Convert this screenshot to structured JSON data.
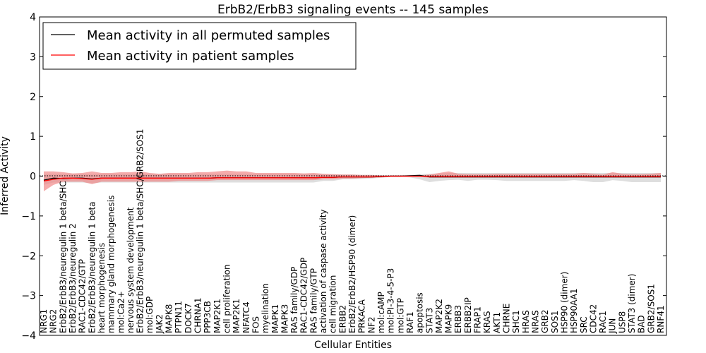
{
  "chart_data": {
    "type": "line",
    "title": "ErbB2/ErbB3 signaling events -- 145 samples",
    "xlabel": "Cellular Entities",
    "ylabel": "Inferred Activity",
    "ylim": [
      -4,
      4
    ],
    "yticks": [
      "4",
      "3",
      "2",
      "1",
      "0",
      "−1",
      "−2",
      "−3",
      "−4"
    ],
    "grid": false,
    "legend_position": "top-left",
    "categories": [
      "NRG1",
      "NRG2",
      "ErbB2/ErbB3/neuregulin 1 beta/SHC",
      "ErbB2/ErbB3/neuregulin 2",
      "RAC1-CDC42/GTP",
      "ErbB2/ErbB3/neuregulin 1 beta",
      "heart morphogenesis",
      "mammary gland morphogenesis",
      "mol:Ca2+",
      "nervous system development",
      "ErbB2/ErbB3/neuregulin 1 beta/SHC/GRB2/SOS1",
      "mol:GDP",
      "JAK2",
      "MAPK8",
      "PTPN11",
      "DOCK7",
      "CHRNA1",
      "PPP3CB",
      "MAP2K1",
      "cell proliferation",
      "MAP2K1",
      "NFATC4",
      "FOS",
      "myelination",
      "MAPK1",
      "MAPK3",
      "RAS family/GDP",
      "RAC1-CDC42/GDP",
      "RAS family/GTP",
      "activation of caspase activity",
      "cell migration",
      "ERBB2",
      "ErbB2/ErbB2/HSP90 (dimer)",
      "PRKACA",
      "NF2",
      "mol:cAMP",
      "mol:PI-3-4-5-P3",
      "mol:GTP",
      "RAF1",
      "apoptosis",
      "STAT3",
      "MAP2K2",
      "MAPK9",
      "ERBB3",
      "ERBB2IP",
      "FRAP1",
      "KRAS",
      "AKT1",
      "CHRNE",
      "SHC1",
      "HRAS",
      "NRAS",
      "GRB2",
      "SOS1",
      "HSP90 (dimer)",
      "HSP90AA1",
      "SRC",
      "CDC42",
      "RAC1",
      "JUN",
      "USP8",
      "STAT3 (dimer)",
      "BAD",
      "GRB2/SOS1",
      "RNF41"
    ],
    "series": [
      {
        "name": "Mean activity in all permuted samples",
        "color": "#000000",
        "values": [
          -0.1,
          -0.05,
          -0.06,
          -0.05,
          -0.05,
          -0.07,
          -0.05,
          -0.05,
          -0.05,
          -0.05,
          -0.05,
          -0.05,
          -0.05,
          -0.05,
          -0.05,
          -0.05,
          -0.05,
          -0.05,
          -0.04,
          -0.04,
          -0.04,
          -0.04,
          -0.04,
          -0.04,
          -0.04,
          -0.04,
          -0.04,
          -0.04,
          -0.04,
          -0.03,
          -0.03,
          -0.02,
          -0.02,
          -0.02,
          -0.02,
          -0.01,
          0.0,
          0.0,
          0.01,
          0.02,
          -0.02,
          -0.02,
          -0.02,
          -0.02,
          -0.02,
          -0.02,
          -0.02,
          -0.02,
          -0.02,
          -0.02,
          -0.02,
          -0.02,
          -0.02,
          -0.02,
          -0.02,
          -0.02,
          -0.02,
          -0.02,
          -0.02,
          -0.02,
          -0.02,
          -0.02,
          -0.02,
          -0.02,
          -0.02
        ]
      },
      {
        "name": "Mean activity in patient samples",
        "color": "#ff0000",
        "values": [
          -0.12,
          -0.08,
          -0.05,
          -0.05,
          -0.06,
          -0.08,
          -0.05,
          -0.05,
          -0.05,
          -0.05,
          -0.05,
          -0.05,
          -0.05,
          -0.05,
          -0.05,
          -0.05,
          -0.05,
          -0.05,
          -0.04,
          -0.04,
          -0.04,
          -0.04,
          -0.04,
          -0.04,
          -0.04,
          -0.04,
          -0.04,
          -0.04,
          -0.04,
          -0.03,
          -0.03,
          -0.02,
          -0.02,
          -0.02,
          -0.02,
          -0.01,
          0.0,
          0.0,
          0.0,
          0.0,
          -0.01,
          -0.01,
          -0.01,
          -0.01,
          -0.01,
          -0.01,
          -0.01,
          -0.01,
          -0.01,
          -0.01,
          -0.01,
          -0.01,
          -0.01,
          -0.01,
          -0.01,
          -0.01,
          -0.01,
          -0.01,
          -0.01,
          -0.01,
          -0.01,
          -0.01,
          -0.01,
          -0.01,
          -0.01
        ]
      }
    ],
    "bands": [
      {
        "of": "Mean activity in all permuted samples",
        "color": "#c8c8c8",
        "upper": [
          0.05,
          0.06,
          0.06,
          0.06,
          0.06,
          0.05,
          0.06,
          0.06,
          0.06,
          0.06,
          0.06,
          0.06,
          0.06,
          0.06,
          0.06,
          0.06,
          0.06,
          0.06,
          0.06,
          0.06,
          0.06,
          0.06,
          0.06,
          0.06,
          0.06,
          0.06,
          0.06,
          0.06,
          0.06,
          0.05,
          0.05,
          0.04,
          0.04,
          0.03,
          0.03,
          0.02,
          0.02,
          0.02,
          0.03,
          0.05,
          0.06,
          0.07,
          0.08,
          0.08,
          0.08,
          0.08,
          0.08,
          0.08,
          0.08,
          0.08,
          0.08,
          0.08,
          0.08,
          0.08,
          0.08,
          0.08,
          0.08,
          0.08,
          0.08,
          0.08,
          0.08,
          0.08,
          0.08,
          0.08,
          0.08
        ],
        "lower": [
          -0.22,
          -0.16,
          -0.16,
          -0.16,
          -0.16,
          -0.18,
          -0.16,
          -0.16,
          -0.16,
          -0.16,
          -0.16,
          -0.16,
          -0.16,
          -0.16,
          -0.16,
          -0.16,
          -0.16,
          -0.16,
          -0.16,
          -0.16,
          -0.16,
          -0.16,
          -0.16,
          -0.16,
          -0.16,
          -0.16,
          -0.16,
          -0.16,
          -0.16,
          -0.12,
          -0.12,
          -0.08,
          -0.08,
          -0.07,
          -0.06,
          -0.04,
          -0.02,
          -0.02,
          -0.03,
          -0.08,
          -0.15,
          -0.12,
          -0.1,
          -0.09,
          -0.12,
          -0.09,
          -0.09,
          -0.1,
          -0.12,
          -0.12,
          -0.12,
          -0.12,
          -0.12,
          -0.12,
          -0.12,
          -0.1,
          -0.12,
          -0.15,
          -0.15,
          -0.1,
          -0.12,
          -0.15,
          -0.15,
          -0.15,
          -0.15
        ]
      },
      {
        "of": "Mean activity in patient samples",
        "color": "#f08080",
        "upper": [
          0.12,
          0.12,
          0.1,
          0.07,
          0.08,
          0.12,
          0.08,
          0.08,
          0.1,
          0.1,
          0.12,
          0.08,
          0.06,
          0.08,
          0.08,
          0.08,
          0.1,
          0.1,
          0.12,
          0.14,
          0.12,
          0.12,
          0.08,
          0.08,
          0.08,
          0.08,
          0.08,
          0.07,
          0.08,
          0.06,
          0.05,
          0.04,
          0.04,
          0.03,
          0.03,
          0.02,
          0.02,
          0.02,
          0.02,
          0.02,
          0.04,
          0.08,
          0.12,
          0.06,
          0.05,
          0.05,
          0.05,
          0.06,
          0.06,
          0.06,
          0.06,
          0.06,
          0.06,
          0.06,
          0.06,
          0.06,
          0.08,
          0.06,
          0.04,
          0.1,
          0.06,
          0.05,
          0.05,
          0.06,
          0.08
        ],
        "lower": [
          -0.38,
          -0.22,
          -0.14,
          -0.14,
          -0.14,
          -0.2,
          -0.14,
          -0.14,
          -0.14,
          -0.14,
          -0.14,
          -0.14,
          -0.14,
          -0.14,
          -0.12,
          -0.12,
          -0.12,
          -0.12,
          -0.1,
          -0.1,
          -0.1,
          -0.1,
          -0.1,
          -0.1,
          -0.1,
          -0.1,
          -0.1,
          -0.1,
          -0.1,
          -0.08,
          -0.08,
          -0.06,
          -0.06,
          -0.05,
          -0.04,
          -0.03,
          -0.02,
          -0.02,
          -0.02,
          -0.02,
          -0.04,
          -0.04,
          -0.04,
          -0.04,
          -0.04,
          -0.04,
          -0.04,
          -0.04,
          -0.04,
          -0.04,
          -0.04,
          -0.04,
          -0.04,
          -0.04,
          -0.04,
          -0.04,
          -0.04,
          -0.04,
          -0.04,
          -0.04,
          -0.04,
          -0.04,
          -0.04,
          -0.04,
          -0.04
        ]
      }
    ]
  }
}
